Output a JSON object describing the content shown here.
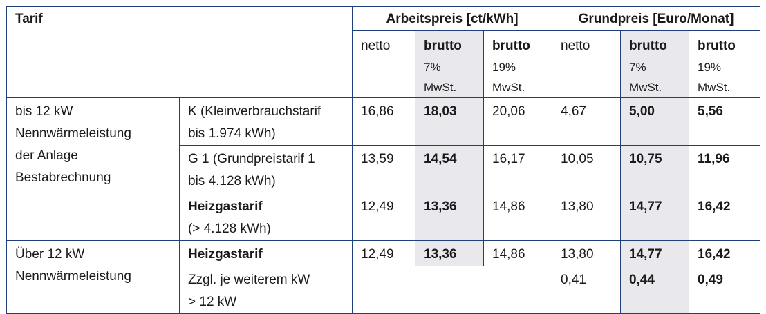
{
  "table": {
    "header": {
      "tarif": "Tarif",
      "arbeitspreis": "Arbeitspreis [ct/kWh]",
      "grundpreis": "Grundpreis [Euro/Monat]"
    },
    "subheader": {
      "netto": "netto",
      "brutto": "brutto",
      "vat7": "7%",
      "vat19": "19%",
      "mwst": "MwSt."
    },
    "groups": [
      {
        "lines": [
          "bis 12 kW",
          "Nennwärmeleistung",
          "der Anlage",
          "Bestabrechnung"
        ]
      },
      {
        "lines": [
          "Über 12 kW",
          "Nennwärmeleistung"
        ]
      }
    ],
    "rows": [
      {
        "tarif_lines": [
          "K (Kleinverbrauchstarif",
          "bis 1.974 kWh)"
        ],
        "ap_netto": "16,86",
        "ap_brutto7": "18,03",
        "ap_brutto19": "20,06",
        "gp_netto": "4,67",
        "gp_brutto7": "5,00",
        "gp_brutto19": "5,56"
      },
      {
        "tarif_lines": [
          "G 1 (Grundpreistarif 1",
          "bis 4.128 kWh)"
        ],
        "ap_netto": "13,59",
        "ap_brutto7": "14,54",
        "ap_brutto19": "16,17",
        "gp_netto": "10,05",
        "gp_brutto7": "10,75",
        "gp_brutto19": "11,96"
      },
      {
        "tarif_lines": [
          "Heizgastarif",
          "(> 4.128 kWh)"
        ],
        "ap_netto": "12,49",
        "ap_brutto7": "13,36",
        "ap_brutto19": "14,86",
        "gp_netto": "13,80",
        "gp_brutto7": "14,77",
        "gp_brutto19": "16,42"
      },
      {
        "tarif_lines": [
          "Heizgastarif"
        ],
        "ap_netto": "12,49",
        "ap_brutto7": "13,36",
        "ap_brutto19": "14,86",
        "gp_netto": "13,80",
        "gp_brutto7": "14,77",
        "gp_brutto19": "16,42"
      },
      {
        "tarif_lines": [
          "Zzgl. je weiterem kW",
          "> 12 kW"
        ],
        "gp_netto": "0,41",
        "gp_brutto7": "0,44",
        "gp_brutto19": "0,49"
      }
    ]
  },
  "colors": {
    "border": "#1f3f7a",
    "shade": "#e9e8ec"
  }
}
